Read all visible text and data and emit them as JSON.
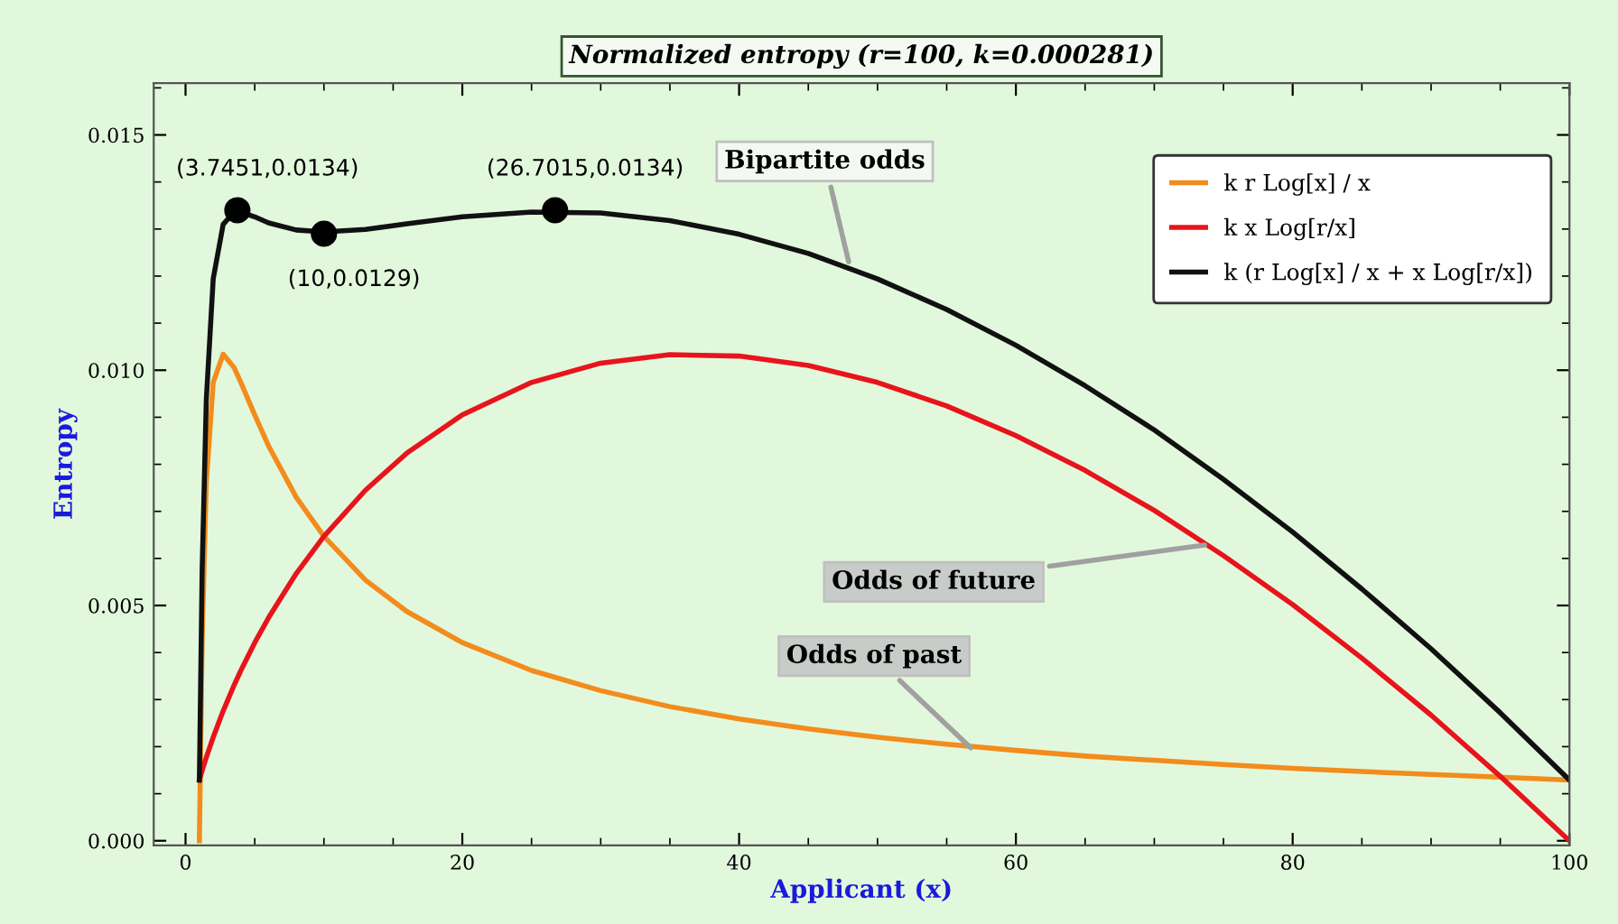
{
  "chart_data": {
    "type": "line",
    "title": "Normalized entropy (r=100, k=0.000281)",
    "xlabel": "Applicant (x)",
    "ylabel": "Entropy",
    "x": [
      1,
      1.2,
      1.5,
      2,
      2.72,
      3.5,
      4,
      5,
      6,
      8,
      10,
      13,
      16,
      20,
      25,
      30,
      35,
      40,
      45,
      50,
      55,
      60,
      65,
      70,
      75,
      80,
      85,
      90,
      95,
      100
    ],
    "series": [
      {
        "name": "k r Log[x] / x",
        "color": "#f28c1c",
        "values": [
          0,
          0.00427,
          0.0076,
          0.00974,
          0.01034,
          0.01006,
          0.00974,
          0.00905,
          0.00839,
          0.0073,
          0.00647,
          0.00554,
          0.00487,
          0.00421,
          0.00362,
          0.00319,
          0.00285,
          0.00259,
          0.00238,
          0.0022,
          0.00205,
          0.00192,
          0.0018,
          0.00171,
          0.00162,
          0.00154,
          0.00147,
          0.00141,
          0.00135,
          0.00129
        ]
      },
      {
        "name": "k x Log[r/x]",
        "color": "#e8141c",
        "values": [
          0.00129,
          0.00149,
          0.00177,
          0.0022,
          0.00276,
          0.0033,
          0.00362,
          0.00421,
          0.00474,
          0.00568,
          0.00647,
          0.00745,
          0.00824,
          0.00905,
          0.00974,
          0.01015,
          0.01033,
          0.0103,
          0.0101,
          0.00974,
          0.00924,
          0.00861,
          0.00787,
          0.00702,
          0.00606,
          0.00502,
          0.00388,
          0.00267,
          0.00137,
          0
        ]
      },
      {
        "name": "k (r Log[x] / x + x Log[r/x])",
        "color": "#111111",
        "values": [
          0.00129,
          0.00576,
          0.00937,
          0.01194,
          0.0131,
          0.01336,
          0.01336,
          0.01326,
          0.01313,
          0.01298,
          0.01294,
          0.01299,
          0.01311,
          0.01326,
          0.01336,
          0.01334,
          0.01318,
          0.01289,
          0.01248,
          0.01194,
          0.01129,
          0.01053,
          0.00967,
          0.00873,
          0.00768,
          0.00656,
          0.00535,
          0.00408,
          0.00272,
          0.00129
        ]
      },
      {
        "type": "scatter",
        "color": "#000000",
        "marker": "circle",
        "x": [
          3.7451,
          10,
          26.7015
        ],
        "values": [
          0.0134,
          0.0129,
          0.0134
        ],
        "value_labels": [
          "(3.7451,0.0134)",
          "(10,0.0129)",
          "(26.7015,0.0134)"
        ]
      }
    ],
    "annotations": [
      {
        "text": "Bipartite odds",
        "x": 48,
        "y": 0.0122
      },
      {
        "text": "Odds of future",
        "x": 74,
        "y": 0.0063
      },
      {
        "text": "Odds of past",
        "x": 57,
        "y": 0.0019
      }
    ],
    "xlim": [
      -2.3,
      100
    ],
    "ylim": [
      -0.0001,
      0.0161
    ],
    "xticks": [
      0,
      20,
      40,
      60,
      80,
      100
    ],
    "yticks": [
      {
        "value": 0,
        "label": "0.000"
      },
      {
        "value": 0.005,
        "label": "0.005"
      },
      {
        "value": 0.01,
        "label": "0.010"
      },
      {
        "value": 0.015,
        "label": "0.015"
      }
    ],
    "legend": "top right",
    "grid": false,
    "line_style": "solid"
  }
}
